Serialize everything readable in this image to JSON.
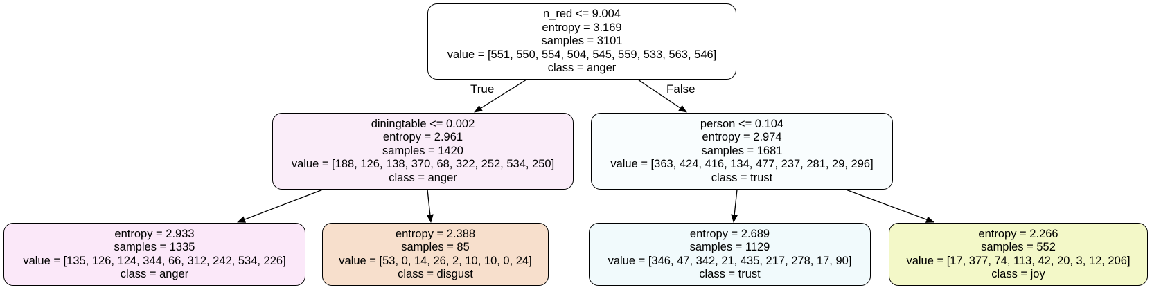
{
  "nodes": {
    "root": {
      "split": "n_red <= 9.004",
      "entropy": "entropy = 3.169",
      "samples": "samples = 3101",
      "value": "value = [551, 550, 554, 504, 545, 559, 533, 563, 546]",
      "class": "class = anger",
      "fill": "#ffffff"
    },
    "left": {
      "split": "diningtable <= 0.002",
      "entropy": "entropy = 2.961",
      "samples": "samples = 1420",
      "value": "value = [188, 126, 138, 370, 68, 322, 252, 534, 250]",
      "class": "class = anger",
      "fill": "#faedf9"
    },
    "right": {
      "split": "person <= 0.104",
      "entropy": "entropy = 2.974",
      "samples": "samples = 1681",
      "value": "value = [363, 424, 416, 134, 477, 237, 281, 29, 296]",
      "class": "class = trust",
      "fill": "#f9fdfe"
    },
    "ll": {
      "entropy": "entropy = 2.933",
      "samples": "samples = 1335",
      "value": "value = [135, 126, 124, 344, 66, 312, 242, 534, 226]",
      "class": "class = anger",
      "fill": "#fbe8f9"
    },
    "lr": {
      "entropy": "entropy = 2.388",
      "samples": "samples = 85",
      "value": "value = [53, 0, 14, 26, 2, 10, 10, 0, 24]",
      "class": "class = disgust",
      "fill": "#f7dfcc"
    },
    "rl": {
      "entropy": "entropy = 2.689",
      "samples": "samples = 1129",
      "value": "value = [346, 47, 342, 21, 435, 217, 278, 17, 90]",
      "class": "class = trust",
      "fill": "#f1fafc"
    },
    "rr": {
      "entropy": "entropy = 2.266",
      "samples": "samples = 552",
      "value": "value = [17, 377, 74, 113, 42, 20, 3, 12, 206]",
      "class": "class = joy",
      "fill": "#f3f8c8"
    }
  },
  "edge_labels": {
    "true_label": "True",
    "false_label": "False"
  }
}
